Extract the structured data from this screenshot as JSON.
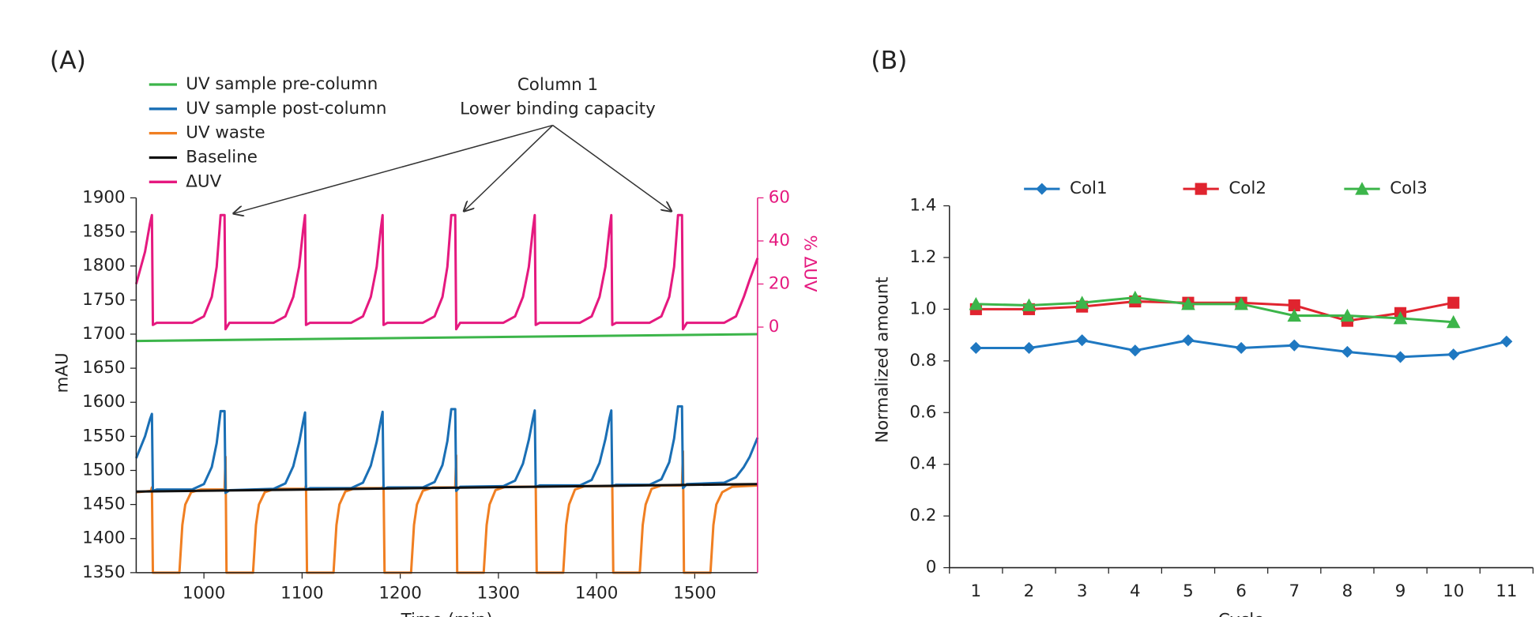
{
  "chart_data": [
    {
      "type": "line",
      "panel_label": "(A)",
      "annotation": [
        "Column 1",
        "Lower binding capacity"
      ],
      "xlabel": "Time (min)",
      "ylabel": "mAU",
      "y2label": "% ΔUV",
      "xlim": [
        931,
        1564
      ],
      "xticks": [
        1000,
        1100,
        1200,
        1300,
        1400,
        1500
      ],
      "ylim": [
        1350,
        1900
      ],
      "yticks": [
        1350,
        1400,
        1450,
        1500,
        1550,
        1600,
        1650,
        1700,
        1750,
        1800,
        1850,
        1900
      ],
      "y2lim": [
        -114,
        60
      ],
      "y2ticks": [
        0,
        20,
        40,
        60
      ],
      "y2color": "#e5197f",
      "series": [
        {
          "name": "UV sample pre-column",
          "color": "#3cb54a",
          "x": [
            931,
            1564
          ],
          "values": [
            1690,
            1700
          ]
        },
        {
          "name": "UV sample post-column",
          "color": "#1a6fb5",
          "x": [
            931,
            940,
            945,
            947,
            948,
            952,
            988,
            1000,
            1008,
            1013,
            1017,
            1021,
            1022,
            1026,
            1071,
            1083,
            1091,
            1097,
            1101,
            1103,
            1104,
            1108,
            1150,
            1162,
            1170,
            1176,
            1180,
            1182,
            1183,
            1187,
            1223,
            1235,
            1243,
            1248,
            1252,
            1256,
            1257,
            1261,
            1305,
            1317,
            1325,
            1331,
            1335,
            1337,
            1338,
            1342,
            1383,
            1395,
            1403,
            1409,
            1413,
            1415,
            1416,
            1420,
            1454,
            1466,
            1474,
            1479,
            1483,
            1487,
            1488,
            1492,
            1530,
            1542,
            1550,
            1556,
            1564
          ],
          "values": [
            1518,
            1550,
            1575,
            1583,
            1470,
            1472,
            1472,
            1480,
            1505,
            1540,
            1587,
            1587,
            1467,
            1471,
            1473,
            1481,
            1506,
            1541,
            1571,
            1585,
            1472,
            1474,
            1474,
            1482,
            1507,
            1542,
            1572,
            1586,
            1473,
            1475,
            1475,
            1483,
            1508,
            1543,
            1590,
            1590,
            1470,
            1476,
            1477,
            1485,
            1510,
            1545,
            1575,
            1588,
            1476,
            1478,
            1478,
            1486,
            1511,
            1546,
            1576,
            1588,
            1477,
            1479,
            1479,
            1487,
            1512,
            1547,
            1594,
            1594,
            1474,
            1480,
            1482,
            1490,
            1505,
            1520,
            1548
          ]
        },
        {
          "name": "UV waste",
          "color": "#f07f22",
          "x": [
            931,
            946,
            947,
            948,
            975,
            978,
            981,
            987,
            997,
            1021,
            1022,
            1023,
            1050,
            1053,
            1056,
            1062,
            1072,
            1103,
            1104,
            1105,
            1132,
            1135,
            1138,
            1144,
            1154,
            1182,
            1183,
            1184,
            1211,
            1214,
            1217,
            1223,
            1233,
            1256,
            1257,
            1258,
            1285,
            1288,
            1291,
            1297,
            1307,
            1337,
            1338,
            1339,
            1366,
            1369,
            1372,
            1378,
            1388,
            1415,
            1416,
            1417,
            1444,
            1447,
            1450,
            1456,
            1466,
            1487,
            1488,
            1489,
            1516,
            1519,
            1522,
            1528,
            1538,
            1564
          ],
          "values": [
            1468,
            1470,
            1475,
            1350,
            1350,
            1420,
            1450,
            1468,
            1472,
            1472,
            1520,
            1350,
            1350,
            1420,
            1450,
            1468,
            1473,
            1473,
            1478,
            1350,
            1350,
            1420,
            1450,
            1469,
            1474,
            1474,
            1478,
            1350,
            1350,
            1420,
            1450,
            1470,
            1475,
            1475,
            1522,
            1350,
            1350,
            1420,
            1450,
            1471,
            1476,
            1476,
            1478,
            1350,
            1350,
            1420,
            1450,
            1472,
            1477,
            1477,
            1478,
            1350,
            1350,
            1420,
            1450,
            1473,
            1478,
            1478,
            1528,
            1350,
            1350,
            1420,
            1450,
            1468,
            1476,
            1478
          ]
        },
        {
          "name": "Baseline",
          "color": "#111111",
          "x": [
            931,
            1564
          ],
          "values": [
            1469,
            1480
          ]
        },
        {
          "name": "ΔUV",
          "color": "#e5197f",
          "axis": "y2",
          "x": [
            931,
            940,
            945,
            947,
            948,
            952,
            988,
            1000,
            1008,
            1013,
            1017,
            1021,
            1022,
            1026,
            1071,
            1083,
            1091,
            1097,
            1101,
            1103,
            1104,
            1108,
            1150,
            1162,
            1170,
            1176,
            1180,
            1182,
            1183,
            1187,
            1223,
            1235,
            1243,
            1248,
            1252,
            1256,
            1257,
            1261,
            1305,
            1317,
            1325,
            1331,
            1335,
            1337,
            1338,
            1342,
            1383,
            1395,
            1403,
            1409,
            1413,
            1415,
            1416,
            1420,
            1454,
            1466,
            1474,
            1479,
            1483,
            1487,
            1488,
            1492,
            1530,
            1542,
            1550,
            1556,
            1564
          ],
          "values": [
            20,
            35,
            48,
            52,
            1,
            2,
            2,
            5,
            14,
            28,
            52,
            52,
            -1,
            2,
            2,
            5,
            14,
            28,
            45,
            52,
            1,
            2,
            2,
            5,
            14,
            28,
            45,
            52,
            1,
            2,
            2,
            5,
            14,
            28,
            52,
            52,
            -1,
            2,
            2,
            5,
            14,
            28,
            45,
            52,
            1,
            2,
            2,
            5,
            14,
            28,
            45,
            52,
            1,
            2,
            2,
            5,
            14,
            28,
            52,
            52,
            -1,
            2,
            2,
            5,
            14,
            22,
            32
          ]
        }
      ]
    },
    {
      "type": "line",
      "panel_label": "(B)",
      "xlabel": "Cycle",
      "ylabel": "Normalized amount",
      "categories": [
        "1",
        "2",
        "3",
        "4",
        "5",
        "6",
        "7",
        "8",
        "9",
        "10",
        "11"
      ],
      "ylim": [
        0,
        1.4
      ],
      "yticks": [
        0,
        0.2,
        0.4,
        0.6,
        0.8,
        {
          "value": 1,
          "label": "1.0"
        },
        1.2,
        1.4
      ],
      "series": [
        {
          "name": "Col1",
          "color": "#1f78c1",
          "marker": "diamond",
          "values": [
            0.85,
            0.85,
            0.88,
            0.84,
            0.88,
            0.85,
            0.86,
            0.835,
            0.815,
            0.825,
            0.875
          ]
        },
        {
          "name": "Col2",
          "color": "#e0242f",
          "marker": "square",
          "values": [
            1.0,
            1.0,
            1.01,
            1.03,
            1.025,
            1.025,
            1.015,
            0.955,
            0.985,
            1.025,
            null
          ]
        },
        {
          "name": "Col3",
          "color": "#3cb54a",
          "marker": "triangle",
          "values": [
            1.02,
            1.015,
            1.025,
            1.045,
            1.02,
            1.02,
            0.975,
            0.975,
            0.965,
            0.95,
            null
          ]
        }
      ]
    }
  ]
}
